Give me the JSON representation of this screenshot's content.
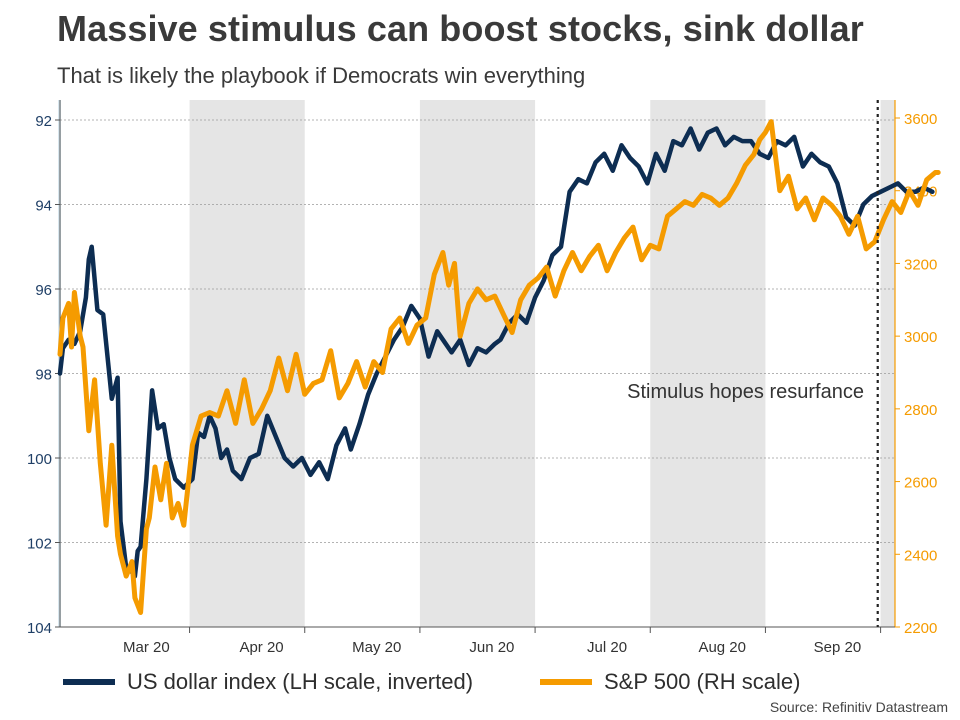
{
  "colors": {
    "usd": "#0d2d52",
    "spx": "#f59b00",
    "shade": "#e5e5e5",
    "grid": "#9a9a9a"
  },
  "title": "Massive stimulus can boost stocks, sink dollar",
  "subtitle": "That is likely the playbook if Democrats win everything",
  "legend": {
    "usd_label": "US dollar index (LH scale, inverted)",
    "spx_label": "S&P 500 (RH scale)"
  },
  "source": "Source: Refinitiv Datastream",
  "chart_data": {
    "type": "line",
    "title": "Massive stimulus can boost stocks, sink dollar",
    "x_range": [
      0,
      29
    ],
    "x_unit": "weeks from start of March 2020",
    "x_ticks": [
      {
        "x": 3,
        "label": "Mar 20"
      },
      {
        "x": 7,
        "label": "Apr 20"
      },
      {
        "x": 11,
        "label": "May 20"
      },
      {
        "x": 15,
        "label": "Jun 20"
      },
      {
        "x": 19,
        "label": "Jul 20"
      },
      {
        "x": 23,
        "label": "Aug 20"
      },
      {
        "x": 27,
        "label": "Sep 20"
      }
    ],
    "month_boundaries": [
      4.5,
      8.5,
      12.5,
      16.5,
      20.5,
      24.5,
      28.5
    ],
    "shaded_bands": [
      [
        4.5,
        8.5
      ],
      [
        12.5,
        16.5
      ],
      [
        20.5,
        24.5
      ],
      [
        28.5,
        31
      ]
    ],
    "y_left": {
      "label": "US dollar index (LH scale, inverted)",
      "range": [
        92,
        104
      ],
      "inverted": true,
      "ticks": [
        92,
        94,
        96,
        98,
        100,
        102,
        104
      ]
    },
    "y_right": {
      "label": "S&P 500 (RH scale)",
      "range": [
        2200,
        3600
      ],
      "ticks": [
        2200,
        2400,
        2600,
        2800,
        3000,
        3200,
        3400,
        3600
      ]
    },
    "series": [
      {
        "name": "US dollar index (LH scale, inverted)",
        "axis": "left",
        "x": [
          0,
          0.1,
          0.3,
          0.5,
          0.7,
          0.9,
          1.0,
          1.1,
          1.3,
          1.5,
          1.8,
          2.0,
          2.1,
          2.3,
          2.5,
          2.6,
          2.7,
          2.8,
          3.0,
          3.2,
          3.4,
          3.6,
          3.8,
          4.0,
          4.3,
          4.6,
          4.8,
          5.0,
          5.2,
          5.4,
          5.6,
          5.8,
          6.0,
          6.3,
          6.6,
          6.9,
          7.2,
          7.5,
          7.8,
          8.1,
          8.4,
          8.7,
          9.0,
          9.3,
          9.6,
          9.9,
          10.1,
          10.4,
          10.7,
          11.0,
          11.3,
          11.6,
          11.9,
          12.2,
          12.5,
          12.8,
          13.1,
          13.3,
          13.6,
          13.9,
          14.2,
          14.5,
          14.8,
          15.1,
          15.3,
          15.6,
          15.9,
          16.2,
          16.5,
          16.8,
          17.1,
          17.4,
          17.7,
          18.0,
          18.3,
          18.6,
          18.9,
          19.2,
          19.5,
          19.8,
          20.1,
          20.4,
          20.7,
          21.0,
          21.3,
          21.6,
          21.9,
          22.2,
          22.5,
          22.8,
          23.1,
          23.4,
          23.7,
          24.0,
          24.3,
          24.6,
          24.9,
          25.2,
          25.5,
          25.8,
          26.1,
          26.4,
          26.7,
          27.0,
          27.3,
          27.6,
          27.9,
          28.2,
          28.5,
          28.8,
          29.1,
          29.4,
          29.7,
          30.0,
          30.3
        ],
        "values": [
          98.0,
          97.4,
          97.2,
          97.3,
          97.0,
          96.2,
          95.3,
          95.0,
          96.5,
          96.6,
          98.6,
          98.1,
          101.5,
          102.6,
          102.7,
          102.8,
          102.2,
          102.1,
          100.5,
          98.4,
          99.3,
          99.2,
          100.0,
          100.5,
          100.7,
          100.5,
          99.4,
          99.5,
          99.0,
          99.3,
          100.0,
          99.8,
          100.3,
          100.5,
          100.0,
          99.9,
          99.0,
          99.5,
          100.0,
          100.2,
          100.0,
          100.4,
          100.1,
          100.5,
          99.7,
          99.3,
          99.8,
          99.2,
          98.5,
          98.0,
          97.6,
          97.2,
          96.9,
          96.4,
          96.7,
          97.6,
          97.0,
          97.2,
          97.5,
          97.2,
          97.8,
          97.4,
          97.5,
          97.3,
          97.2,
          96.8,
          96.6,
          96.8,
          96.2,
          95.8,
          95.2,
          95.0,
          93.7,
          93.4,
          93.5,
          93.0,
          92.8,
          93.2,
          92.6,
          92.9,
          93.1,
          93.5,
          92.8,
          93.2,
          92.5,
          92.6,
          92.2,
          92.7,
          92.3,
          92.2,
          92.6,
          92.4,
          92.5,
          92.5,
          92.8,
          92.9,
          92.5,
          92.6,
          92.4,
          93.1,
          92.8,
          93.0,
          93.1,
          93.5,
          94.3,
          94.5,
          94.0,
          93.8,
          93.7,
          93.6,
          93.5,
          93.7,
          93.7,
          93.6,
          93.7
        ],
        "note": "plotted on inverted left scale"
      },
      {
        "name": "S&P 500 (RH scale)",
        "axis": "right",
        "x": [
          0,
          0.1,
          0.3,
          0.4,
          0.5,
          0.7,
          0.8,
          1.0,
          1.2,
          1.4,
          1.6,
          1.8,
          2.0,
          2.1,
          2.3,
          2.5,
          2.6,
          2.8,
          3.0,
          3.1,
          3.3,
          3.5,
          3.7,
          3.9,
          4.1,
          4.3,
          4.6,
          4.9,
          5.2,
          5.5,
          5.8,
          6.1,
          6.4,
          6.7,
          7.0,
          7.3,
          7.6,
          7.9,
          8.2,
          8.5,
          8.8,
          9.1,
          9.4,
          9.7,
          10.0,
          10.3,
          10.6,
          10.9,
          11.2,
          11.5,
          11.8,
          12.1,
          12.4,
          12.7,
          13.0,
          13.3,
          13.5,
          13.7,
          13.9,
          14.2,
          14.5,
          14.8,
          15.1,
          15.4,
          15.7,
          16.0,
          16.3,
          16.6,
          16.9,
          17.2,
          17.5,
          17.8,
          18.1,
          18.4,
          18.7,
          19.0,
          19.3,
          19.6,
          19.9,
          20.2,
          20.5,
          20.8,
          21.1,
          21.4,
          21.7,
          22.0,
          22.3,
          22.6,
          22.9,
          23.2,
          23.5,
          23.8,
          24.1,
          24.3,
          24.5,
          24.7,
          25.0,
          25.3,
          25.6,
          25.9,
          26.2,
          26.5,
          26.8,
          27.1,
          27.4,
          27.7,
          28.0,
          28.3,
          28.6,
          28.9,
          29.2,
          29.5,
          29.8,
          30.1,
          30.4,
          30.6
        ],
        "values": [
          2950,
          3050,
          3090,
          2970,
          3120,
          3000,
          2970,
          2740,
          2880,
          2650,
          2480,
          2700,
          2450,
          2400,
          2340,
          2380,
          2280,
          2240,
          2470,
          2500,
          2640,
          2550,
          2650,
          2500,
          2540,
          2480,
          2700,
          2780,
          2790,
          2780,
          2850,
          2760,
          2880,
          2760,
          2800,
          2850,
          2940,
          2850,
          2950,
          2840,
          2870,
          2880,
          2960,
          2830,
          2870,
          2930,
          2860,
          2930,
          2900,
          3020,
          3050,
          2980,
          3030,
          3050,
          3170,
          3230,
          3140,
          3200,
          3000,
          3090,
          3130,
          3100,
          3110,
          3060,
          3010,
          3100,
          3140,
          3160,
          3190,
          3110,
          3180,
          3230,
          3180,
          3220,
          3250,
          3180,
          3230,
          3270,
          3300,
          3210,
          3250,
          3240,
          3330,
          3350,
          3370,
          3360,
          3390,
          3380,
          3360,
          3380,
          3420,
          3470,
          3500,
          3540,
          3560,
          3590,
          3400,
          3440,
          3350,
          3380,
          3320,
          3380,
          3360,
          3330,
          3280,
          3330,
          3240,
          3260,
          3320,
          3370,
          3340,
          3400,
          3360,
          3430,
          3450,
          3450
        ]
      }
    ],
    "annotations": [
      {
        "text": "Stimulus hopes resurfance",
        "x": 28.2,
        "y_right": 2830
      },
      {
        "type": "vertical-dotted-line",
        "x": 28.4
      }
    ]
  }
}
